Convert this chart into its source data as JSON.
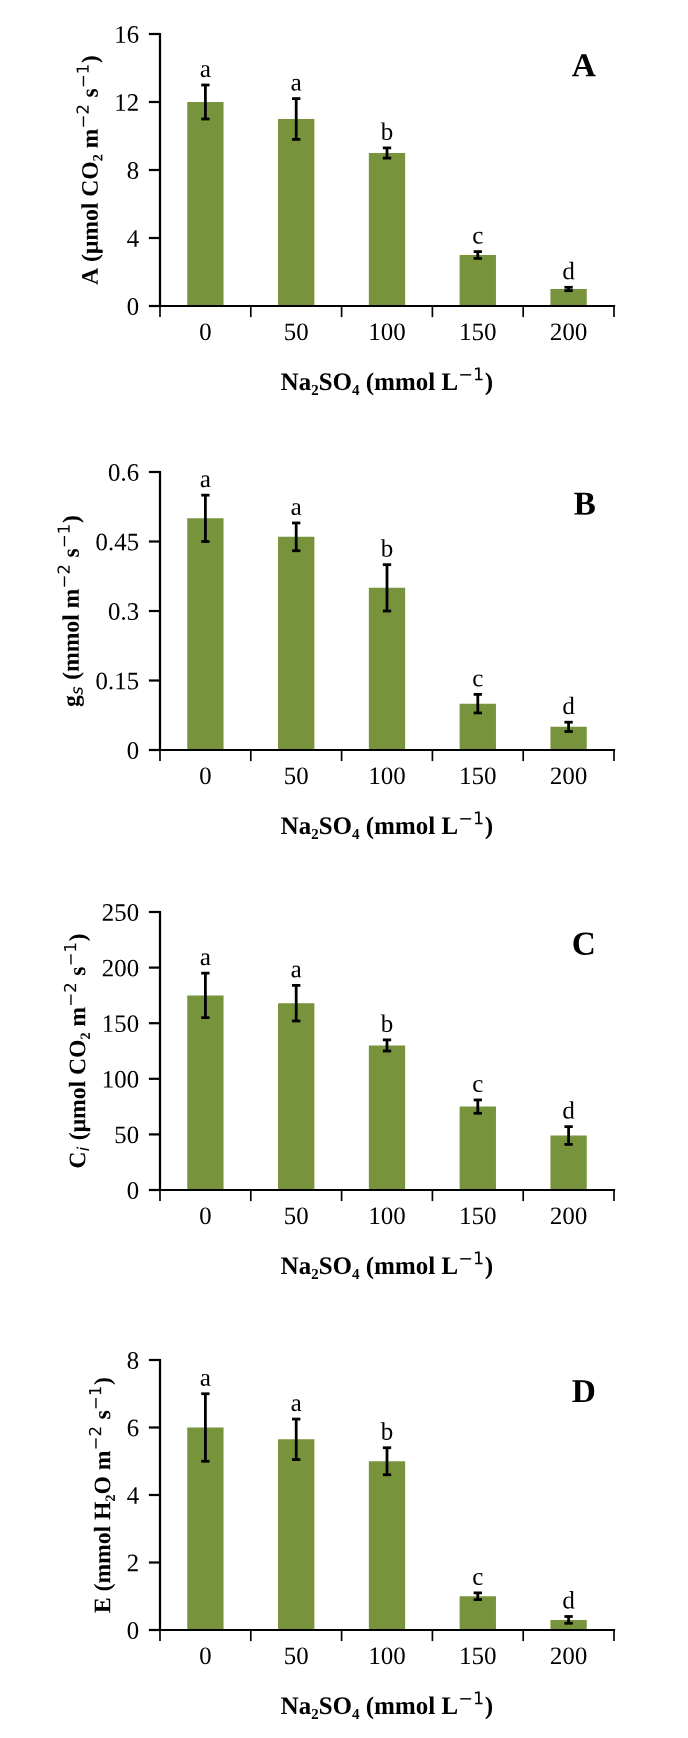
{
  "chart_data": [
    {
      "type": "bar",
      "title": "A",
      "xlabel": "Na₂SO₄ (mmol L$^{−1}$)",
      "ylabel": "A (μmol CO₂ m$^{−2}$ s$^{−1}$)",
      "categories": [
        "0",
        "50",
        "100",
        "150",
        "200"
      ],
      "values": [
        12,
        11,
        9,
        3,
        1
      ],
      "errors": [
        1,
        1.2,
        0.3,
        0.2,
        0.1
      ],
      "color": "#77933c",
      "ylim": [
        0,
        16
      ],
      "yticks": [
        0,
        4,
        8,
        12,
        16
      ],
      "grid": false,
      "annotations": [
        {
          "text": "a",
          "x": "0",
          "y": 13
        },
        {
          "text": "a",
          "x": "50",
          "y": 12.2
        },
        {
          "text": "b",
          "x": "100",
          "y": 9.3
        },
        {
          "text": "c",
          "x": "150",
          "y": 3.2
        },
        {
          "text": "d",
          "x": "200",
          "y": 1.1
        }
      ]
    },
    {
      "type": "bar",
      "title": "B",
      "xlabel": "Na₂SO₄ (mmol L$^{−1}$)",
      "ylabel": "g$_{s}$ (mmol m$^{−2}$ s$^{−1}$)",
      "categories": [
        "0",
        "50",
        "100",
        "150",
        "200"
      ],
      "values": [
        0.5,
        0.46,
        0.35,
        0.1,
        0.05
      ],
      "errors": [
        0.05,
        0.03,
        0.05,
        0.02,
        0.01
      ],
      "color": "#77933c",
      "ylim": [
        0,
        0.6
      ],
      "yticks": [
        0,
        0.15,
        0.3,
        0.45,
        0.6
      ],
      "grid": false,
      "annotations": [
        {
          "text": "a",
          "x": "0",
          "y": 0.55
        },
        {
          "text": "a",
          "x": "50",
          "y": 0.49
        },
        {
          "text": "b",
          "x": "100",
          "y": 0.4
        },
        {
          "text": "c",
          "x": "150",
          "y": 0.12
        },
        {
          "text": "d",
          "x": "200",
          "y": 0.06
        }
      ]
    },
    {
      "type": "bar",
      "title": "C",
      "xlabel": "Na₂SO₄ (mmol L$^{−1}$)",
      "ylabel": "C$_{i}$ (μmol CO₂ m$^{−2}$ s$^{−1}$)",
      "categories": [
        "0",
        "50",
        "100",
        "150",
        "200"
      ],
      "values": [
        175,
        168,
        130,
        75,
        49
      ],
      "errors": [
        20,
        16,
        5,
        6,
        8
      ],
      "color": "#77933c",
      "ylim": [
        0,
        250
      ],
      "yticks": [
        0,
        50,
        100,
        150,
        200,
        250
      ],
      "grid": false,
      "annotations": [
        {
          "text": "a",
          "x": "0",
          "y": 195
        },
        {
          "text": "a",
          "x": "50",
          "y": 184
        },
        {
          "text": "b",
          "x": "100",
          "y": 135
        },
        {
          "text": "c",
          "x": "150",
          "y": 81
        },
        {
          "text": "d",
          "x": "200",
          "y": 57
        }
      ]
    },
    {
      "type": "bar",
      "title": "D",
      "xlabel": "Na₂SO₄ (mmol L$^{−1}$)",
      "ylabel": "E (mmol H₂O m$^{−2}$ s$^{−1}$)",
      "categories": [
        "0",
        "50",
        "100",
        "150",
        "200"
      ],
      "values": [
        6,
        5.65,
        5,
        1,
        0.3
      ],
      "errors": [
        1,
        0.6,
        0.4,
        0.1,
        0.1
      ],
      "color": "#77933c",
      "ylim": [
        0,
        8
      ],
      "yticks": [
        0,
        2,
        4,
        6,
        8
      ],
      "grid": false,
      "annotations": [
        {
          "text": "a",
          "x": "0",
          "y": 7
        },
        {
          "text": "a",
          "x": "50",
          "y": 6.25
        },
        {
          "text": "b",
          "x": "100",
          "y": 5.4
        },
        {
          "text": "c",
          "x": "150",
          "y": 1.1
        },
        {
          "text": "d",
          "x": "200",
          "y": 0.4
        }
      ]
    }
  ]
}
